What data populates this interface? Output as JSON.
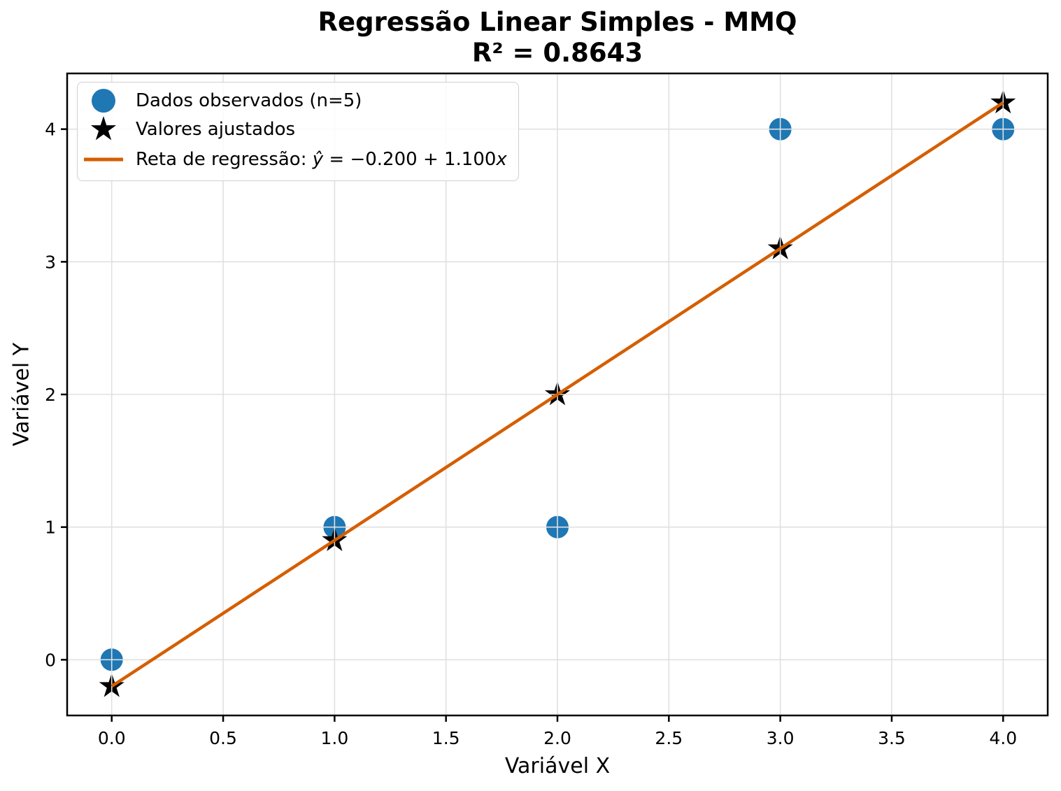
{
  "title": {
    "line1": "Regressão Linear Simples - MMQ",
    "line2": "R² = 0.8643"
  },
  "axes": {
    "xlabel": "Variável X",
    "ylabel": "Variável Y"
  },
  "legend": {
    "items": [
      {
        "marker": "circle",
        "label": "Dados observados (n=5)"
      },
      {
        "marker": "star",
        "label": "Valores ajustados"
      },
      {
        "marker": "line",
        "label_prefix": "Reta de regressão: ",
        "label_yhat": "ŷ",
        "label_mid": " = −0.200 + 1.100",
        "label_x": "x"
      }
    ]
  },
  "chart_data": {
    "type": "scatter",
    "title": "Regressão Linear Simples - MMQ",
    "subtitle": "R² = 0.8643",
    "xlabel": "Variável X",
    "ylabel": "Variável Y",
    "xlim": [
      -0.2,
      4.2
    ],
    "ylim": [
      -0.42,
      4.42
    ],
    "xticks": [
      0.0,
      0.5,
      1.0,
      1.5,
      2.0,
      2.5,
      3.0,
      3.5,
      4.0
    ],
    "xtick_labels": [
      "0.0",
      "0.5",
      "1.0",
      "1.5",
      "2.0",
      "2.5",
      "3.0",
      "3.5",
      "4.0"
    ],
    "yticks": [
      0,
      1,
      2,
      3,
      4
    ],
    "ytick_labels": [
      "0",
      "1",
      "2",
      "3",
      "4"
    ],
    "grid": true,
    "legend_position": "upper-left",
    "regression": {
      "intercept": -0.2,
      "slope": 1.1,
      "r_squared": 0.8643,
      "n": 5
    },
    "colors": {
      "observed": "#1f77b4",
      "fitted": "#000000",
      "line": "#d55e00",
      "grid": "#e0e0e0",
      "spine": "#000000"
    },
    "series": [
      {
        "name": "Dados observados (n=5)",
        "type": "scatter",
        "marker": "circle",
        "color": "#1f77b4",
        "x": [
          0,
          1,
          2,
          3,
          4
        ],
        "y": [
          0,
          1,
          1,
          4,
          4
        ]
      },
      {
        "name": "Valores ajustados",
        "type": "scatter",
        "marker": "star",
        "color": "#000000",
        "x": [
          0,
          1,
          2,
          3,
          4
        ],
        "y": [
          -0.2,
          0.9,
          2.0,
          3.1,
          4.2
        ]
      },
      {
        "name": "Reta de regressão: ŷ = −0.200 + 1.100x",
        "type": "line",
        "color": "#d55e00",
        "x": [
          0,
          4
        ],
        "y": [
          -0.2,
          4.2
        ]
      }
    ]
  }
}
